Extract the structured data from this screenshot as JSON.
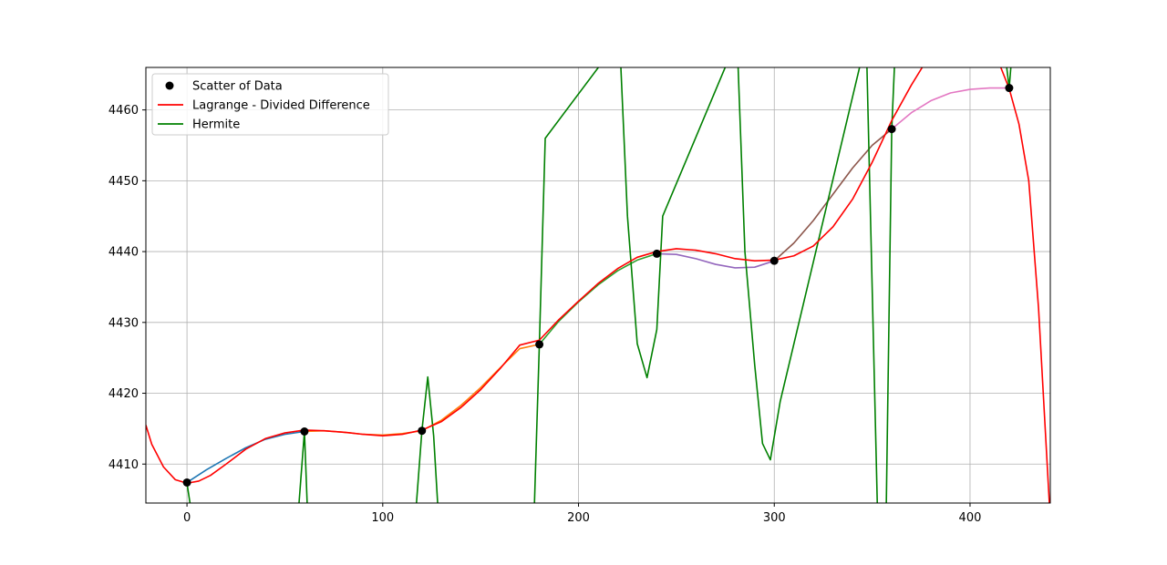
{
  "chart_data": {
    "type": "line",
    "title": "",
    "xlabel": "",
    "ylabel": "",
    "xlim": [
      -21,
      441
    ],
    "ylim": [
      4404.5,
      4466
    ],
    "grid": true,
    "legend_position": "top-left",
    "x_ticks": [
      0,
      100,
      200,
      300,
      400
    ],
    "y_ticks": [
      4410,
      4420,
      4430,
      4440,
      4450,
      4460
    ],
    "scatter": {
      "name": "Scatter of Data",
      "color": "#000000",
      "x": [
        0,
        60,
        120,
        180,
        240,
        300,
        360,
        420
      ],
      "y": [
        4407.4,
        4414.6,
        4414.7,
        4426.9,
        4439.7,
        4438.7,
        4457.3,
        4463.1
      ]
    },
    "series": [
      {
        "name": "Lagrange - Divided Difference",
        "color": "#ff0000",
        "x": [
          -21,
          -18,
          -12,
          -6,
          0,
          6,
          12,
          20,
          30,
          40,
          50,
          60,
          70,
          80,
          90,
          100,
          110,
          120,
          130,
          140,
          150,
          160,
          170,
          180,
          190,
          200,
          210,
          220,
          230,
          240,
          250,
          260,
          270,
          280,
          290,
          300,
          310,
          320,
          330,
          340,
          350,
          360,
          370,
          380,
          390,
          400,
          410,
          420,
          425,
          430,
          435,
          441
        ],
        "y": [
          4415.5,
          4412.8,
          4409.6,
          4407.8,
          4407.3,
          4407.6,
          4408.4,
          4410.0,
          4412.1,
          4413.6,
          4414.4,
          4414.8,
          4414.7,
          4414.5,
          4414.2,
          4414.0,
          4414.2,
          4414.8,
          4416.0,
          4418.0,
          4420.5,
          4423.5,
          4426.8,
          4427.5,
          4430.4,
          4433.0,
          4435.5,
          4437.6,
          4439.2,
          4440.0,
          4440.4,
          4440.2,
          4439.7,
          4439.0,
          4438.7,
          4438.8,
          4439.4,
          4440.8,
          4443.5,
          4447.4,
          4452.6,
          4458.5,
          4463.5,
          4468.0,
          4471.0,
          4472.0,
          4470.0,
          4463.0,
          4458.0,
          4450.0,
          4432.0,
          4402.0
        ]
      },
      {
        "name": "Hermite",
        "color": "#008000",
        "x": [
          0,
          4,
          56,
          60,
          62,
          116,
          120,
          123,
          126,
          129,
          177,
          180,
          183,
          221,
          225,
          230,
          235,
          240,
          243,
          281,
          285,
          290,
          294,
          298,
          303,
          347,
          353,
          357,
          360,
          362,
          417,
          420,
          422
        ],
        "y": [
          4407.3,
          4400.0,
          4400.0,
          4414.6,
          4400.0,
          4400.0,
          4414.7,
          4422.3,
          4414.0,
          4400.0,
          4400.0,
          4426.9,
          4456.0,
          4470.0,
          4445.0,
          4427.0,
          4422.2,
          4429.0,
          4445.0,
          4470.0,
          4440.0,
          4424.0,
          4412.9,
          4410.6,
          4418.8,
          4470.0,
          4400.0,
          4400.0,
          4457.3,
          4470.0,
          4470.0,
          4463.1,
          4470.0
        ]
      },
      {
        "name": "",
        "color": "#1f77b4",
        "x": [
          0,
          10,
          20,
          30,
          40,
          50,
          60
        ],
        "y": [
          4407.4,
          4409.2,
          4410.8,
          4412.3,
          4413.5,
          4414.2,
          4414.6
        ]
      },
      {
        "name": "",
        "color": "#ff7f0e",
        "x": [
          60,
          70,
          80,
          90,
          100,
          110,
          120,
          130,
          140,
          150,
          160,
          170,
          180
        ],
        "y": [
          4414.6,
          4414.7,
          4414.5,
          4414.2,
          4414.1,
          4414.3,
          4414.7,
          4416.2,
          4418.3,
          4420.8,
          4423.6,
          4426.3,
          4426.9
        ]
      },
      {
        "name": "",
        "color": "#2ca02c",
        "x": [
          180,
          190,
          200,
          210,
          220,
          230,
          240
        ],
        "y": [
          4426.9,
          4430.2,
          4432.9,
          4435.3,
          4437.3,
          4438.8,
          4439.7
        ]
      },
      {
        "name": "",
        "color": "#9467bd",
        "x": [
          240,
          250,
          260,
          270,
          280,
          290,
          300
        ],
        "y": [
          4439.7,
          4439.6,
          4439.0,
          4438.2,
          4437.7,
          4437.8,
          4438.7
        ]
      },
      {
        "name": "",
        "color": "#8c564b",
        "x": [
          300,
          310,
          320,
          330,
          340,
          350,
          360
        ],
        "y": [
          4438.7,
          4441.2,
          4444.4,
          4448.1,
          4451.8,
          4455.0,
          4457.3
        ]
      },
      {
        "name": "",
        "color": "#e377c2",
        "x": [
          360,
          370,
          380,
          390,
          400,
          410,
          420
        ],
        "y": [
          4457.3,
          4459.6,
          4461.3,
          4462.4,
          4462.9,
          4463.1,
          4463.1
        ]
      }
    ],
    "legend": [
      {
        "label": "Scatter of Data",
        "kind": "marker",
        "color": "#000000"
      },
      {
        "label": "Lagrange - Divided Difference",
        "kind": "line",
        "color": "#ff0000"
      },
      {
        "label": "Hermite",
        "kind": "line",
        "color": "#008000"
      }
    ]
  }
}
